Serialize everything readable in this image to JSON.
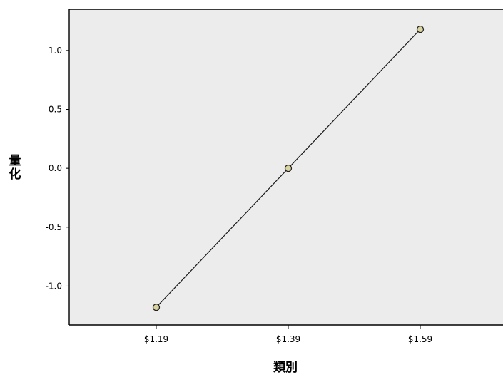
{
  "chart_data": {
    "type": "line",
    "title": "",
    "xlabel": "類別",
    "ylabel": "量化",
    "categories": [
      "$1.19",
      "$1.39",
      "$1.59"
    ],
    "series": [
      {
        "values": [
          -1.18,
          0.0,
          1.18
        ]
      }
    ],
    "ylim": [
      -1.33,
      1.35
    ],
    "y_ticks": [
      {
        "value": 1.0,
        "label": "1.0"
      },
      {
        "value": 0.5,
        "label": "0.5"
      },
      {
        "value": 0.0,
        "label": "0.0"
      },
      {
        "value": -0.5,
        "label": "-0.5"
      },
      {
        "value": -1.0,
        "label": "-1.0"
      }
    ],
    "grid": false,
    "colors": {
      "plot_background": "#ececec",
      "line": "#1a1a1a",
      "marker_fill": "#d9d3a0",
      "marker_stroke": "#222222"
    }
  }
}
